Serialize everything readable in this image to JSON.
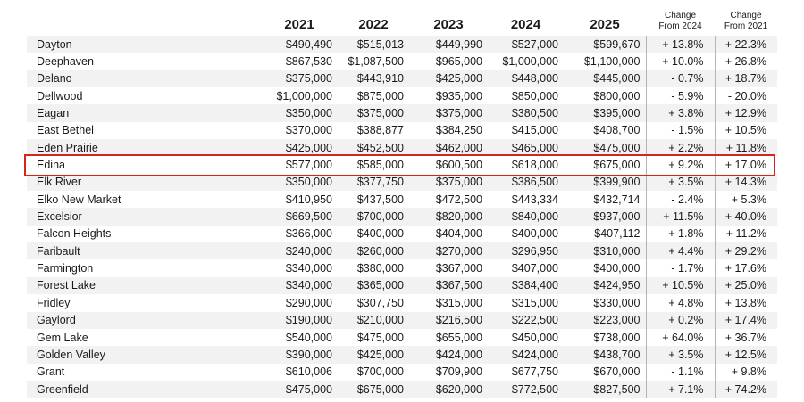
{
  "columns": {
    "y2021": "2021",
    "y2022": "2022",
    "y2023": "2023",
    "y2024": "2024",
    "y2025": "2025",
    "chg24_line1": "Change",
    "chg24_line2": "From 2024",
    "chg21_line1": "Change",
    "chg21_line2": "From 2021"
  },
  "highlight_color": "#d3261c",
  "highlighted_town": "Edina",
  "rows": [
    {
      "town": "Dayton",
      "y2021": "$490,490",
      "y2022": "$515,013",
      "y2023": "$449,990",
      "y2024": "$527,000",
      "y2025": "$599,670",
      "chg24": "+ 13.8%",
      "chg21": "+ 22.3%"
    },
    {
      "town": "Deephaven",
      "y2021": "$867,530",
      "y2022": "$1,087,500",
      "y2023": "$965,000",
      "y2024": "$1,000,000",
      "y2025": "$1,100,000",
      "chg24": "+ 10.0%",
      "chg21": "+ 26.8%"
    },
    {
      "town": "Delano",
      "y2021": "$375,000",
      "y2022": "$443,910",
      "y2023": "$425,000",
      "y2024": "$448,000",
      "y2025": "$445,000",
      "chg24": "- 0.7%",
      "chg21": "+ 18.7%"
    },
    {
      "town": "Dellwood",
      "y2021": "$1,000,000",
      "y2022": "$875,000",
      "y2023": "$935,000",
      "y2024": "$850,000",
      "y2025": "$800,000",
      "chg24": "- 5.9%",
      "chg21": "- 20.0%"
    },
    {
      "town": "Eagan",
      "y2021": "$350,000",
      "y2022": "$375,000",
      "y2023": "$375,000",
      "y2024": "$380,500",
      "y2025": "$395,000",
      "chg24": "+ 3.8%",
      "chg21": "+ 12.9%"
    },
    {
      "town": "East Bethel",
      "y2021": "$370,000",
      "y2022": "$388,877",
      "y2023": "$384,250",
      "y2024": "$415,000",
      "y2025": "$408,700",
      "chg24": "- 1.5%",
      "chg21": "+ 10.5%"
    },
    {
      "town": "Eden Prairie",
      "y2021": "$425,000",
      "y2022": "$452,500",
      "y2023": "$462,000",
      "y2024": "$465,000",
      "y2025": "$475,000",
      "chg24": "+ 2.2%",
      "chg21": "+ 11.8%"
    },
    {
      "town": "Edina",
      "y2021": "$577,000",
      "y2022": "$585,000",
      "y2023": "$600,500",
      "y2024": "$618,000",
      "y2025": "$675,000",
      "chg24": "+ 9.2%",
      "chg21": "+ 17.0%"
    },
    {
      "town": "Elk River",
      "y2021": "$350,000",
      "y2022": "$377,750",
      "y2023": "$375,000",
      "y2024": "$386,500",
      "y2025": "$399,900",
      "chg24": "+ 3.5%",
      "chg21": "+ 14.3%"
    },
    {
      "town": "Elko New Market",
      "y2021": "$410,950",
      "y2022": "$437,500",
      "y2023": "$472,500",
      "y2024": "$443,334",
      "y2025": "$432,714",
      "chg24": "- 2.4%",
      "chg21": "+ 5.3%"
    },
    {
      "town": "Excelsior",
      "y2021": "$669,500",
      "y2022": "$700,000",
      "y2023": "$820,000",
      "y2024": "$840,000",
      "y2025": "$937,000",
      "chg24": "+ 11.5%",
      "chg21": "+ 40.0%"
    },
    {
      "town": "Falcon Heights",
      "y2021": "$366,000",
      "y2022": "$400,000",
      "y2023": "$404,000",
      "y2024": "$400,000",
      "y2025": "$407,112",
      "chg24": "+ 1.8%",
      "chg21": "+ 11.2%"
    },
    {
      "town": "Faribault",
      "y2021": "$240,000",
      "y2022": "$260,000",
      "y2023": "$270,000",
      "y2024": "$296,950",
      "y2025": "$310,000",
      "chg24": "+ 4.4%",
      "chg21": "+ 29.2%"
    },
    {
      "town": "Farmington",
      "y2021": "$340,000",
      "y2022": "$380,000",
      "y2023": "$367,000",
      "y2024": "$407,000",
      "y2025": "$400,000",
      "chg24": "- 1.7%",
      "chg21": "+ 17.6%"
    },
    {
      "town": "Forest Lake",
      "y2021": "$340,000",
      "y2022": "$365,000",
      "y2023": "$367,500",
      "y2024": "$384,400",
      "y2025": "$424,950",
      "chg24": "+ 10.5%",
      "chg21": "+ 25.0%"
    },
    {
      "town": "Fridley",
      "y2021": "$290,000",
      "y2022": "$307,750",
      "y2023": "$315,000",
      "y2024": "$315,000",
      "y2025": "$330,000",
      "chg24": "+ 4.8%",
      "chg21": "+ 13.8%"
    },
    {
      "town": "Gaylord",
      "y2021": "$190,000",
      "y2022": "$210,000",
      "y2023": "$216,500",
      "y2024": "$222,500",
      "y2025": "$223,000",
      "chg24": "+ 0.2%",
      "chg21": "+ 17.4%"
    },
    {
      "town": "Gem Lake",
      "y2021": "$540,000",
      "y2022": "$475,000",
      "y2023": "$655,000",
      "y2024": "$450,000",
      "y2025": "$738,000",
      "chg24": "+ 64.0%",
      "chg21": "+ 36.7%"
    },
    {
      "town": "Golden Valley",
      "y2021": "$390,000",
      "y2022": "$425,000",
      "y2023": "$424,000",
      "y2024": "$424,000",
      "y2025": "$438,700",
      "chg24": "+ 3.5%",
      "chg21": "+ 12.5%"
    },
    {
      "town": "Grant",
      "y2021": "$610,006",
      "y2022": "$700,000",
      "y2023": "$709,900",
      "y2024": "$677,750",
      "y2025": "$670,000",
      "chg24": "- 1.1%",
      "chg21": "+ 9.8%"
    },
    {
      "town": "Greenfield",
      "y2021": "$475,000",
      "y2022": "$675,000",
      "y2023": "$620,000",
      "y2024": "$772,500",
      "y2025": "$827,500",
      "chg24": "+ 7.1%",
      "chg21": "+ 74.2%"
    }
  ]
}
